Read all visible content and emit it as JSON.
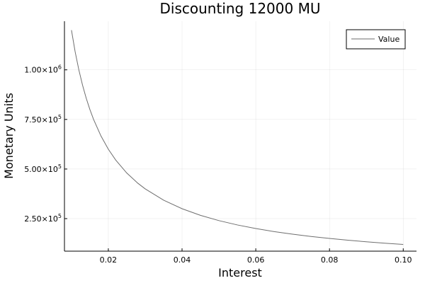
{
  "chart_data": {
    "type": "line",
    "title": "Discounting 12000 MU",
    "xlabel": "Interest",
    "ylabel": "Monetary Units",
    "xlim": [
      0.0081,
      0.1036
    ],
    "ylim": [
      86000,
      1245000
    ],
    "grid": true,
    "legend": "top-right",
    "xticks": [
      {
        "value": 0.02,
        "label": "0.02"
      },
      {
        "value": 0.04,
        "label": "0.04"
      },
      {
        "value": 0.06,
        "label": "0.06"
      },
      {
        "value": 0.08,
        "label": "0.08"
      },
      {
        "value": 0.1,
        "label": "0.10"
      }
    ],
    "yticks": [
      {
        "value": 250000,
        "mantissa": "2.50",
        "exponent": "5"
      },
      {
        "value": 500000,
        "mantissa": "5.00",
        "exponent": "5"
      },
      {
        "value": 750000,
        "mantissa": "7.50",
        "exponent": "5"
      },
      {
        "value": 1000000,
        "mantissa": "1.00",
        "exponent": "6"
      }
    ],
    "series": [
      {
        "name": "Value",
        "color": "#6e6e6e",
        "x": [
          0.01,
          0.011,
          0.012,
          0.013,
          0.014,
          0.015,
          0.016,
          0.018,
          0.02,
          0.022,
          0.025,
          0.028,
          0.03,
          0.035,
          0.04,
          0.045,
          0.05,
          0.055,
          0.06,
          0.065,
          0.07,
          0.075,
          0.08,
          0.085,
          0.09,
          0.095,
          0.1
        ],
        "y": [
          1200000,
          1090909,
          1000000,
          923077,
          857143,
          800000,
          750000,
          666667,
          600000,
          545455,
          480000,
          428571,
          400000,
          342857,
          300000,
          266667,
          240000,
          218182,
          200000,
          184615,
          171429,
          160000,
          150000,
          141176,
          133333,
          126316,
          120000
        ]
      }
    ]
  }
}
